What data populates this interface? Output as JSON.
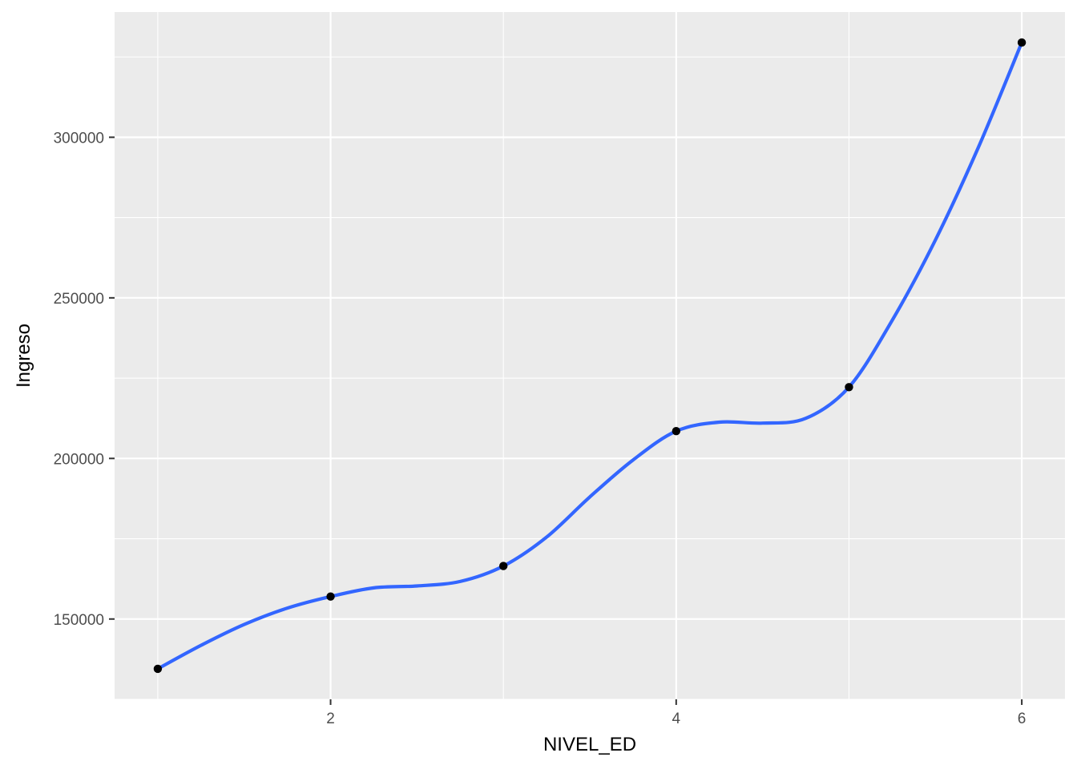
{
  "chart_data": {
    "type": "line",
    "xlabel": "NIVEL_ED",
    "ylabel": "Ingreso",
    "xlim": [
      0.75,
      6.25
    ],
    "ylim": [
      125000,
      339000
    ],
    "x_ticks": [
      2,
      4,
      6
    ],
    "x_tick_labels": [
      "2",
      "4",
      "6"
    ],
    "x_minor_ticks": [
      1,
      3,
      5
    ],
    "y_ticks": [
      150000,
      200000,
      250000,
      300000
    ],
    "y_tick_labels": [
      "150000",
      "200000",
      "250000",
      "300000"
    ],
    "y_minor_ticks": [
      125000,
      175000,
      225000,
      275000,
      325000
    ],
    "grid": true,
    "series": [
      {
        "kind": "points",
        "x": [
          1,
          2,
          3,
          4,
          5,
          6
        ],
        "y": [
          134500,
          157000,
          166500,
          208500,
          222200,
          329500
        ]
      },
      {
        "kind": "smooth-line",
        "x": [
          1,
          1.25,
          1.5,
          1.75,
          2,
          2.25,
          2.5,
          2.75,
          3,
          3.25,
          3.5,
          3.75,
          4,
          4.25,
          4.5,
          4.75,
          5,
          5.25,
          5.5,
          5.75,
          6
        ],
        "y": [
          134500,
          141800,
          148300,
          153400,
          157000,
          159700,
          160300,
          161700,
          166500,
          175500,
          188000,
          199500,
          208500,
          211300,
          211000,
          212500,
          222200,
          243000,
          268000,
          297000,
          329500
        ]
      }
    ],
    "colors": {
      "panel": "#ebebeb",
      "grid": "#ffffff",
      "line": "#3366ff",
      "points": "#000000"
    }
  }
}
